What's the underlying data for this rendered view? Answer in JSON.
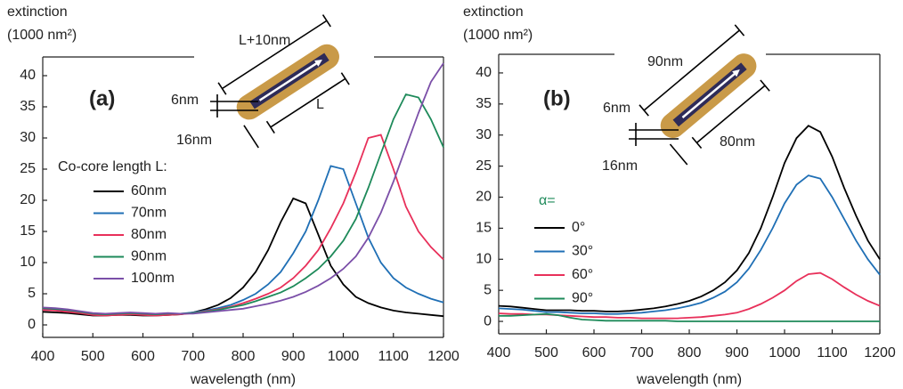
{
  "chart_data": [
    {
      "type": "line",
      "title": "(a)",
      "ylabel": "extinction",
      "ylabel_unit": "(1000 nm²)",
      "xlabel": "wavelength (nm)",
      "legend_title": "Co-core length L:",
      "annotations": [
        "L+10nm",
        "6nm",
        "L",
        "16nm"
      ],
      "xlim": [
        400,
        1200
      ],
      "ylim": [
        -2,
        43
      ],
      "xticks": [
        400,
        500,
        600,
        700,
        800,
        900,
        1000,
        1100,
        1200
      ],
      "yticks": [
        0,
        5,
        10,
        15,
        20,
        25,
        30,
        35,
        40
      ],
      "x": [
        400,
        425,
        450,
        475,
        500,
        525,
        550,
        575,
        600,
        625,
        650,
        675,
        700,
        725,
        750,
        775,
        800,
        825,
        850,
        875,
        900,
        925,
        950,
        975,
        1000,
        1025,
        1050,
        1075,
        1100,
        1125,
        1150,
        1175,
        1200
      ],
      "series": [
        {
          "name": "60nm",
          "color": "#000000",
          "values": [
            2.1,
            2.0,
            1.9,
            1.7,
            1.5,
            1.5,
            1.6,
            1.6,
            1.5,
            1.5,
            1.6,
            1.7,
            2.0,
            2.5,
            3.2,
            4.3,
            6.0,
            8.5,
            12.0,
            16.5,
            20.3,
            19.5,
            14.5,
            9.5,
            6.5,
            4.5,
            3.5,
            2.8,
            2.3,
            2.0,
            1.8,
            1.6,
            1.4
          ]
        },
        {
          "name": "70nm",
          "color": "#1f6fb5",
          "values": [
            2.6,
            2.5,
            2.3,
            2.0,
            1.7,
            1.6,
            1.7,
            1.8,
            1.7,
            1.6,
            1.7,
            1.8,
            2.0,
            2.3,
            2.7,
            3.2,
            4.0,
            5.0,
            6.5,
            8.5,
            11.5,
            15.0,
            20.0,
            25.5,
            25.0,
            19.5,
            14.0,
            10.0,
            7.5,
            6.0,
            5.0,
            4.2,
            3.6
          ]
        },
        {
          "name": "80nm",
          "color": "#e8305a",
          "values": [
            2.4,
            2.3,
            2.1,
            1.9,
            1.6,
            1.5,
            1.6,
            1.7,
            1.6,
            1.5,
            1.6,
            1.7,
            1.9,
            2.2,
            2.5,
            2.9,
            3.5,
            4.2,
            5.0,
            6.0,
            7.5,
            9.5,
            12.0,
            15.5,
            19.5,
            24.5,
            30.0,
            30.5,
            25.0,
            19.0,
            15.0,
            12.5,
            10.5
          ]
        },
        {
          "name": "90nm",
          "color": "#1e8a5a",
          "values": [
            2.7,
            2.6,
            2.4,
            2.1,
            1.8,
            1.7,
            1.8,
            1.9,
            1.8,
            1.7,
            1.8,
            1.8,
            1.9,
            2.1,
            2.4,
            2.8,
            3.2,
            3.8,
            4.5,
            5.2,
            6.2,
            7.5,
            9.0,
            11.0,
            13.5,
            17.0,
            22.0,
            27.5,
            33.0,
            37.0,
            36.5,
            33.0,
            28.5
          ]
        },
        {
          "name": "100nm",
          "color": "#7b4fa8",
          "values": [
            2.8,
            2.7,
            2.5,
            2.2,
            1.9,
            1.8,
            1.9,
            2.0,
            1.9,
            1.8,
            1.9,
            1.8,
            1.8,
            2.0,
            2.2,
            2.4,
            2.6,
            3.0,
            3.4,
            3.9,
            4.5,
            5.3,
            6.3,
            7.5,
            9.0,
            11.0,
            14.0,
            18.0,
            23.0,
            28.5,
            34.0,
            39.0,
            42.0
          ]
        }
      ]
    },
    {
      "type": "line",
      "title": "(b)",
      "ylabel": "extinction",
      "ylabel_unit": "(1000 nm²)",
      "xlabel": "wavelength (nm)",
      "legend_title": "α=",
      "legend_title_color": "#1e8a5a",
      "annotations": [
        "90nm",
        "6nm",
        "80nm",
        "16nm"
      ],
      "xlim": [
        400,
        1200
      ],
      "ylim": [
        -2,
        43
      ],
      "xticks": [
        400,
        500,
        600,
        700,
        800,
        900,
        1000,
        1100,
        1200
      ],
      "yticks": [
        0,
        5,
        10,
        15,
        20,
        25,
        30,
        35,
        40
      ],
      "x": [
        400,
        425,
        450,
        475,
        500,
        525,
        550,
        575,
        600,
        625,
        650,
        675,
        700,
        725,
        750,
        775,
        800,
        825,
        850,
        875,
        900,
        925,
        950,
        975,
        1000,
        1025,
        1050,
        1075,
        1100,
        1125,
        1150,
        1175,
        1200
      ],
      "series": [
        {
          "name": "0°",
          "color": "#000000",
          "values": [
            2.5,
            2.4,
            2.2,
            2.0,
            1.8,
            1.8,
            1.8,
            1.7,
            1.7,
            1.6,
            1.6,
            1.7,
            1.9,
            2.1,
            2.4,
            2.8,
            3.3,
            4.0,
            5.0,
            6.3,
            8.2,
            11.0,
            15.0,
            20.0,
            25.5,
            29.5,
            31.5,
            30.5,
            26.5,
            21.5,
            17.0,
            13.0,
            10.0
          ]
        },
        {
          "name": "30°",
          "color": "#1f6fb5",
          "values": [
            2.1,
            2.0,
            1.9,
            1.7,
            1.5,
            1.5,
            1.4,
            1.3,
            1.3,
            1.2,
            1.2,
            1.3,
            1.4,
            1.6,
            1.8,
            2.1,
            2.5,
            3.0,
            3.8,
            4.8,
            6.3,
            8.5,
            11.5,
            15.0,
            19.0,
            22.0,
            23.5,
            23.0,
            20.0,
            16.5,
            13.0,
            10.0,
            7.5
          ]
        },
        {
          "name": "60°",
          "color": "#e8305a",
          "values": [
            1.3,
            1.2,
            1.2,
            1.1,
            1.1,
            1.0,
            0.9,
            0.8,
            0.7,
            0.7,
            0.6,
            0.6,
            0.5,
            0.5,
            0.5,
            0.5,
            0.6,
            0.7,
            0.9,
            1.1,
            1.4,
            2.0,
            2.8,
            3.8,
            5.0,
            6.5,
            7.6,
            7.8,
            6.8,
            5.5,
            4.3,
            3.3,
            2.5
          ]
        },
        {
          "name": "90°",
          "color": "#1e8a5a",
          "values": [
            0.9,
            0.9,
            1.0,
            1.1,
            1.2,
            1.0,
            0.6,
            0.3,
            0.2,
            0.1,
            0.1,
            0.1,
            0.1,
            0.1,
            0.1,
            0.0,
            0.0,
            0.0,
            0.0,
            0.0,
            0.0,
            0.0,
            0.0,
            0.0,
            0.0,
            0.0,
            0.0,
            0.0,
            0.0,
            0.0,
            0.0,
            0.0,
            0.0
          ]
        }
      ]
    }
  ]
}
